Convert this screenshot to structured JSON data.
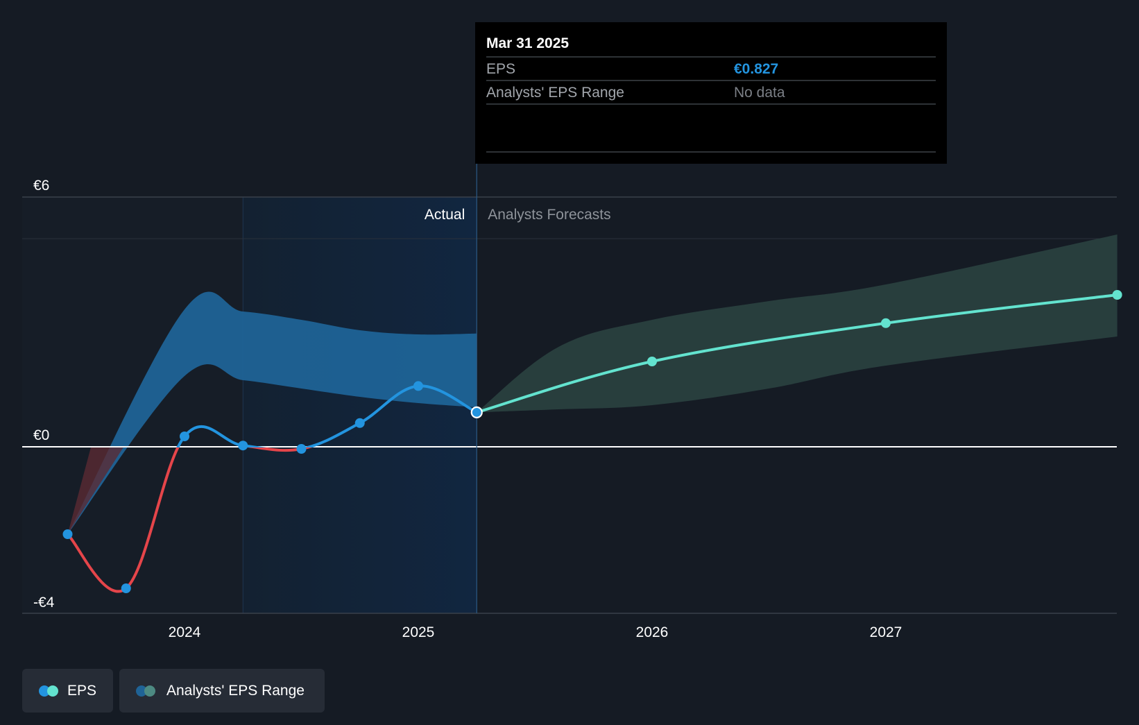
{
  "colors": {
    "background": "#151b24",
    "actual_eps": "#2394df",
    "negative_eps": "#e5454a",
    "forecast_eps": "#63e3cf",
    "actual_band": "#1f6396",
    "forecast_band": "#29403f",
    "tooltip_bg": "#000000",
    "tooltip_value": "#2394df",
    "muted_text": "#7b7f86"
  },
  "chart_data": {
    "type": "line",
    "y_ticks": [
      {
        "label": "€6",
        "value": 6
      },
      {
        "label": "€0",
        "value": 0
      },
      {
        "label": "-€4",
        "value": -4
      }
    ],
    "x_ticks": [
      {
        "label": "2024",
        "value": 2024.0
      },
      {
        "label": "2025",
        "value": 2025.0
      },
      {
        "label": "2026",
        "value": 2026.0
      },
      {
        "label": "2027",
        "value": 2027.0
      }
    ],
    "ylim": [
      -4,
      6
    ],
    "xlim": [
      2023.3,
      2027.99
    ],
    "section_labels": {
      "actual": "Actual",
      "forecast": "Analysts Forecasts"
    },
    "divider_x": 2025.25,
    "highlight_start_x": 2024.25,
    "series": [
      {
        "name": "EPS",
        "kind": "actual",
        "points": [
          {
            "x": 2023.5,
            "y": -2.1
          },
          {
            "x": 2023.75,
            "y": -3.4
          },
          {
            "x": 2024.0,
            "y": 0.25
          },
          {
            "x": 2024.25,
            "y": 0.03
          },
          {
            "x": 2024.5,
            "y": -0.05
          },
          {
            "x": 2024.75,
            "y": 0.57
          },
          {
            "x": 2025.0,
            "y": 1.46
          },
          {
            "x": 2025.25,
            "y": 0.827
          }
        ]
      },
      {
        "name": "EPS",
        "kind": "forecast",
        "points": [
          {
            "x": 2025.25,
            "y": 0.827
          },
          {
            "x": 2026.0,
            "y": 2.05
          },
          {
            "x": 2027.0,
            "y": 2.97
          },
          {
            "x": 2027.99,
            "y": 3.65
          }
        ]
      }
    ],
    "range_bands": [
      {
        "name": "Analysts' EPS Range",
        "kind": "actual",
        "points": [
          {
            "x": 2023.5,
            "y_low": -2.1,
            "y_high": -2.1
          },
          {
            "x": 2024.0,
            "y_low": 1.7,
            "y_high": 3.3
          },
          {
            "x": 2024.25,
            "y_low": 1.6,
            "y_high": 3.25
          },
          {
            "x": 2024.5,
            "y_low": 1.4,
            "y_high": 3.05
          },
          {
            "x": 2024.75,
            "y_low": 1.2,
            "y_high": 2.8
          },
          {
            "x": 2025.0,
            "y_low": 1.05,
            "y_high": 2.7
          },
          {
            "x": 2025.25,
            "y_low": 0.95,
            "y_high": 2.72
          }
        ]
      },
      {
        "name": "Analysts' EPS Range",
        "kind": "forecast",
        "points": [
          {
            "x": 2025.25,
            "y_low": 0.827,
            "y_high": 0.827
          },
          {
            "x": 2025.6,
            "y_low": 0.9,
            "y_high": 2.4
          },
          {
            "x": 2026.0,
            "y_low": 1.0,
            "y_high": 3.05
          },
          {
            "x": 2026.5,
            "y_low": 1.4,
            "y_high": 3.5
          },
          {
            "x": 2027.0,
            "y_low": 1.95,
            "y_high": 3.9
          },
          {
            "x": 2027.99,
            "y_low": 2.65,
            "y_high": 5.1
          }
        ]
      }
    ],
    "tooltip": {
      "date": "Mar 31 2025",
      "rows": [
        {
          "label": "EPS",
          "value": "€0.827"
        },
        {
          "label": "Analysts' EPS Range",
          "value": "No data"
        }
      ]
    },
    "legend": [
      {
        "label": "EPS"
      },
      {
        "label": "Analysts' EPS Range"
      }
    ]
  }
}
